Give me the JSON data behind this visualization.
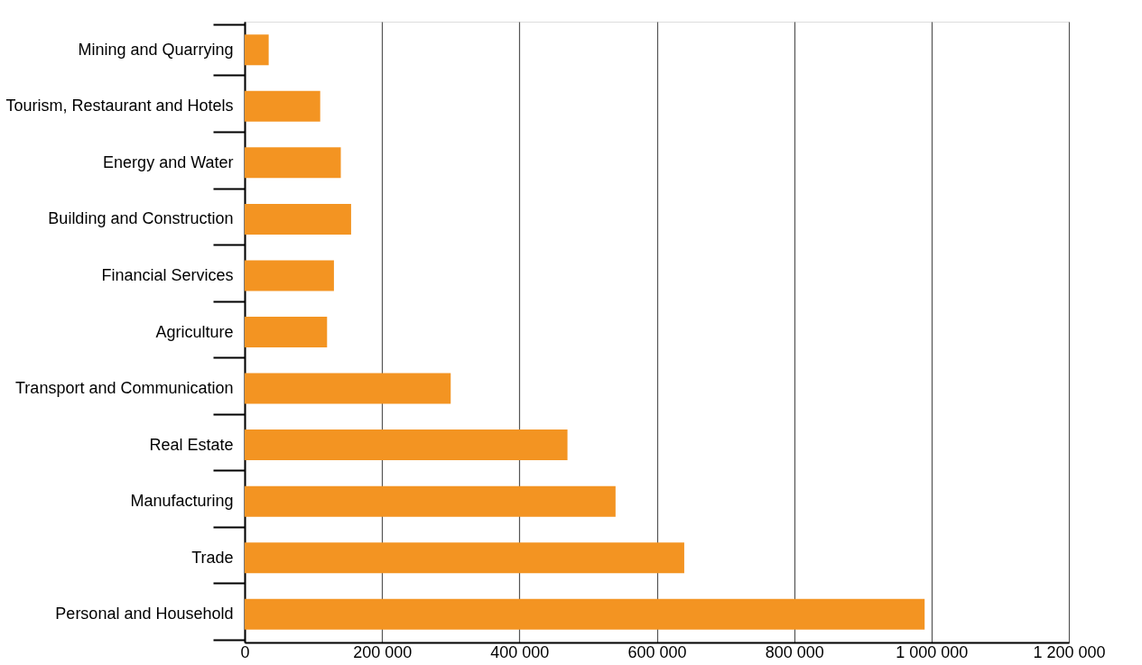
{
  "chart_data": {
    "type": "bar",
    "orientation": "horizontal",
    "categories": [
      "Mining and Quarrying",
      "Tourism, Restaurant and Hotels",
      "Energy and Water",
      "Building and Construction",
      "Financial Services",
      "Agriculture",
      "Transport and Communication",
      "Real Estate",
      "Manufacturing",
      "Trade",
      "Personal and Household"
    ],
    "values": [
      35000,
      110000,
      140000,
      155000,
      130000,
      120000,
      300000,
      470000,
      540000,
      640000,
      990000
    ],
    "color": "#f39422",
    "xlim": [
      0,
      1200000
    ],
    "xticks": [
      0,
      {
        "value": 200000,
        "label": "200 000"
      },
      {
        "value": 400000,
        "label": "400 000"
      },
      {
        "value": 600000,
        "label": "600 000"
      },
      {
        "value": 800000,
        "label": "800 000"
      },
      {
        "value": 1000000,
        "label": "1 000 000"
      },
      {
        "value": 1200000,
        "label": "1 200 000"
      }
    ],
    "grid": "x"
  }
}
